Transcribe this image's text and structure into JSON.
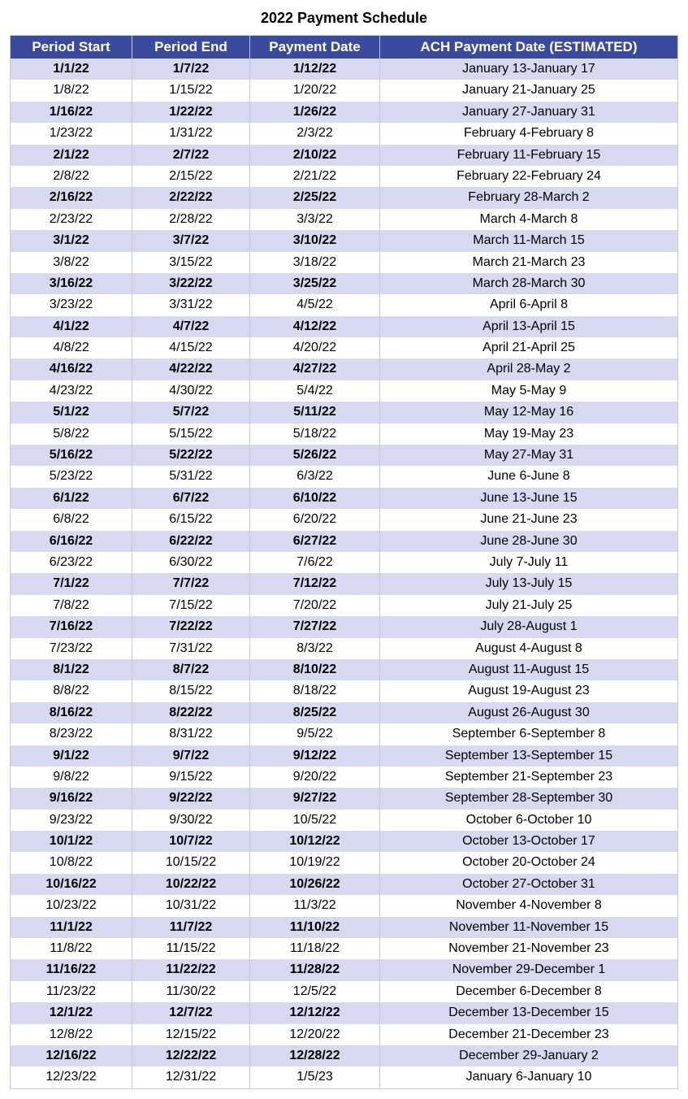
{
  "title": "2022 Payment Schedule",
  "table": {
    "columns": [
      "Period Start",
      "Period End",
      "Payment Date",
      "ACH Payment Date (ESTIMATED)"
    ],
    "header_bg": "#3c4a9e",
    "header_text_color": "#ffffff",
    "shaded_bg": "#d6d9f0",
    "plain_bg": "#ffffff",
    "border_color": "#c8c8d8",
    "rows": [
      {
        "shaded": true,
        "cells": [
          "1/1/22",
          "1/7/22",
          "1/12/22",
          "January 13-January 17"
        ]
      },
      {
        "shaded": false,
        "cells": [
          "1/8/22",
          "1/15/22",
          "1/20/22",
          "January 21-January 25"
        ]
      },
      {
        "shaded": true,
        "cells": [
          "1/16/22",
          "1/22/22",
          "1/26/22",
          "January 27-January 31"
        ]
      },
      {
        "shaded": false,
        "cells": [
          "1/23/22",
          "1/31/22",
          "2/3/22",
          "February 4-February 8"
        ]
      },
      {
        "shaded": true,
        "cells": [
          "2/1/22",
          "2/7/22",
          "2/10/22",
          "February 11-February 15"
        ]
      },
      {
        "shaded": false,
        "cells": [
          "2/8/22",
          "2/15/22",
          "2/21/22",
          "February 22-February 24"
        ]
      },
      {
        "shaded": true,
        "cells": [
          "2/16/22",
          "2/22/22",
          "2/25/22",
          "February 28-March 2"
        ]
      },
      {
        "shaded": false,
        "cells": [
          "2/23/22",
          "2/28/22",
          "3/3/22",
          "March 4-March 8"
        ]
      },
      {
        "shaded": true,
        "cells": [
          "3/1/22",
          "3/7/22",
          "3/10/22",
          "March 11-March 15"
        ]
      },
      {
        "shaded": false,
        "cells": [
          "3/8/22",
          "3/15/22",
          "3/18/22",
          "March 21-March 23"
        ]
      },
      {
        "shaded": true,
        "cells": [
          "3/16/22",
          "3/22/22",
          "3/25/22",
          "March 28-March 30"
        ]
      },
      {
        "shaded": false,
        "cells": [
          "3/23/22",
          "3/31/22",
          "4/5/22",
          "April 6-April 8"
        ]
      },
      {
        "shaded": true,
        "cells": [
          "4/1/22",
          "4/7/22",
          "4/12/22",
          "April 13-April 15"
        ]
      },
      {
        "shaded": false,
        "cells": [
          "4/8/22",
          "4/15/22",
          "4/20/22",
          "April 21-April 25"
        ]
      },
      {
        "shaded": true,
        "cells": [
          "4/16/22",
          "4/22/22",
          "4/27/22",
          "April 28-May 2"
        ]
      },
      {
        "shaded": false,
        "cells": [
          "4/23/22",
          "4/30/22",
          "5/4/22",
          "May 5-May 9"
        ]
      },
      {
        "shaded": true,
        "cells": [
          "5/1/22",
          "5/7/22",
          "5/11/22",
          "May 12-May 16"
        ]
      },
      {
        "shaded": false,
        "cells": [
          "5/8/22",
          "5/15/22",
          "5/18/22",
          "May 19-May 23"
        ]
      },
      {
        "shaded": true,
        "cells": [
          "5/16/22",
          "5/22/22",
          "5/26/22",
          "May 27-May 31"
        ]
      },
      {
        "shaded": false,
        "cells": [
          "5/23/22",
          "5/31/22",
          "6/3/22",
          "June 6-June 8"
        ]
      },
      {
        "shaded": true,
        "cells": [
          "6/1/22",
          "6/7/22",
          "6/10/22",
          "June 13-June 15"
        ]
      },
      {
        "shaded": false,
        "cells": [
          "6/8/22",
          "6/15/22",
          "6/20/22",
          "June 21-June 23"
        ]
      },
      {
        "shaded": true,
        "cells": [
          "6/16/22",
          "6/22/22",
          "6/27/22",
          "June 28-June 30"
        ]
      },
      {
        "shaded": false,
        "cells": [
          "6/23/22",
          "6/30/22",
          "7/6/22",
          "July 7-July 11"
        ]
      },
      {
        "shaded": true,
        "cells": [
          "7/1/22",
          "7/7/22",
          "7/12/22",
          "July 13-July 15"
        ]
      },
      {
        "shaded": false,
        "cells": [
          "7/8/22",
          "7/15/22",
          "7/20/22",
          "July 21-July 25"
        ]
      },
      {
        "shaded": true,
        "cells": [
          "7/16/22",
          "7/22/22",
          "7/27/22",
          "July 28-August 1"
        ]
      },
      {
        "shaded": false,
        "cells": [
          "7/23/22",
          "7/31/22",
          "8/3/22",
          "August 4-August 8"
        ]
      },
      {
        "shaded": true,
        "cells": [
          "8/1/22",
          "8/7/22",
          "8/10/22",
          "August 11-August 15"
        ]
      },
      {
        "shaded": false,
        "cells": [
          "8/8/22",
          "8/15/22",
          "8/18/22",
          "August 19-August 23"
        ]
      },
      {
        "shaded": true,
        "cells": [
          "8/16/22",
          "8/22/22",
          "8/25/22",
          "August 26-August 30"
        ]
      },
      {
        "shaded": false,
        "cells": [
          "8/23/22",
          "8/31/22",
          "9/5/22",
          "September 6-September 8"
        ]
      },
      {
        "shaded": true,
        "cells": [
          "9/1/22",
          "9/7/22",
          "9/12/22",
          "September 13-September 15"
        ]
      },
      {
        "shaded": false,
        "cells": [
          "9/8/22",
          "9/15/22",
          "9/20/22",
          "September 21-September 23"
        ]
      },
      {
        "shaded": true,
        "cells": [
          "9/16/22",
          "9/22/22",
          "9/27/22",
          "September 28-September 30"
        ]
      },
      {
        "shaded": false,
        "cells": [
          "9/23/22",
          "9/30/22",
          "10/5/22",
          "October 6-October 10"
        ]
      },
      {
        "shaded": true,
        "cells": [
          "10/1/22",
          "10/7/22",
          "10/12/22",
          "October 13-October 17"
        ]
      },
      {
        "shaded": false,
        "cells": [
          "10/8/22",
          "10/15/22",
          "10/19/22",
          "October 20-October 24"
        ]
      },
      {
        "shaded": true,
        "cells": [
          "10/16/22",
          "10/22/22",
          "10/26/22",
          "October 27-October 31"
        ]
      },
      {
        "shaded": false,
        "cells": [
          "10/23/22",
          "10/31/22",
          "11/3/22",
          "November 4-November 8"
        ]
      },
      {
        "shaded": true,
        "cells": [
          "11/1/22",
          "11/7/22",
          "11/10/22",
          "November 11-November 15"
        ]
      },
      {
        "shaded": false,
        "cells": [
          "11/8/22",
          "11/15/22",
          "11/18/22",
          "November 21-November 23"
        ]
      },
      {
        "shaded": true,
        "cells": [
          "11/16/22",
          "11/22/22",
          "11/28/22",
          "November 29-December 1"
        ]
      },
      {
        "shaded": false,
        "cells": [
          "11/23/22",
          "11/30/22",
          "12/5/22",
          "December 6-December 8"
        ]
      },
      {
        "shaded": true,
        "cells": [
          "12/1/22",
          "12/7/22",
          "12/12/22",
          "December 13-December 15"
        ]
      },
      {
        "shaded": false,
        "cells": [
          "12/8/22",
          "12/15/22",
          "12/20/22",
          "December 21-December 23"
        ]
      },
      {
        "shaded": true,
        "cells": [
          "12/16/22",
          "12/22/22",
          "12/28/22",
          "December 29-January 2"
        ]
      },
      {
        "shaded": false,
        "cells": [
          "12/23/22",
          "12/31/22",
          "1/5/23",
          "January 6-January 10"
        ]
      }
    ]
  }
}
